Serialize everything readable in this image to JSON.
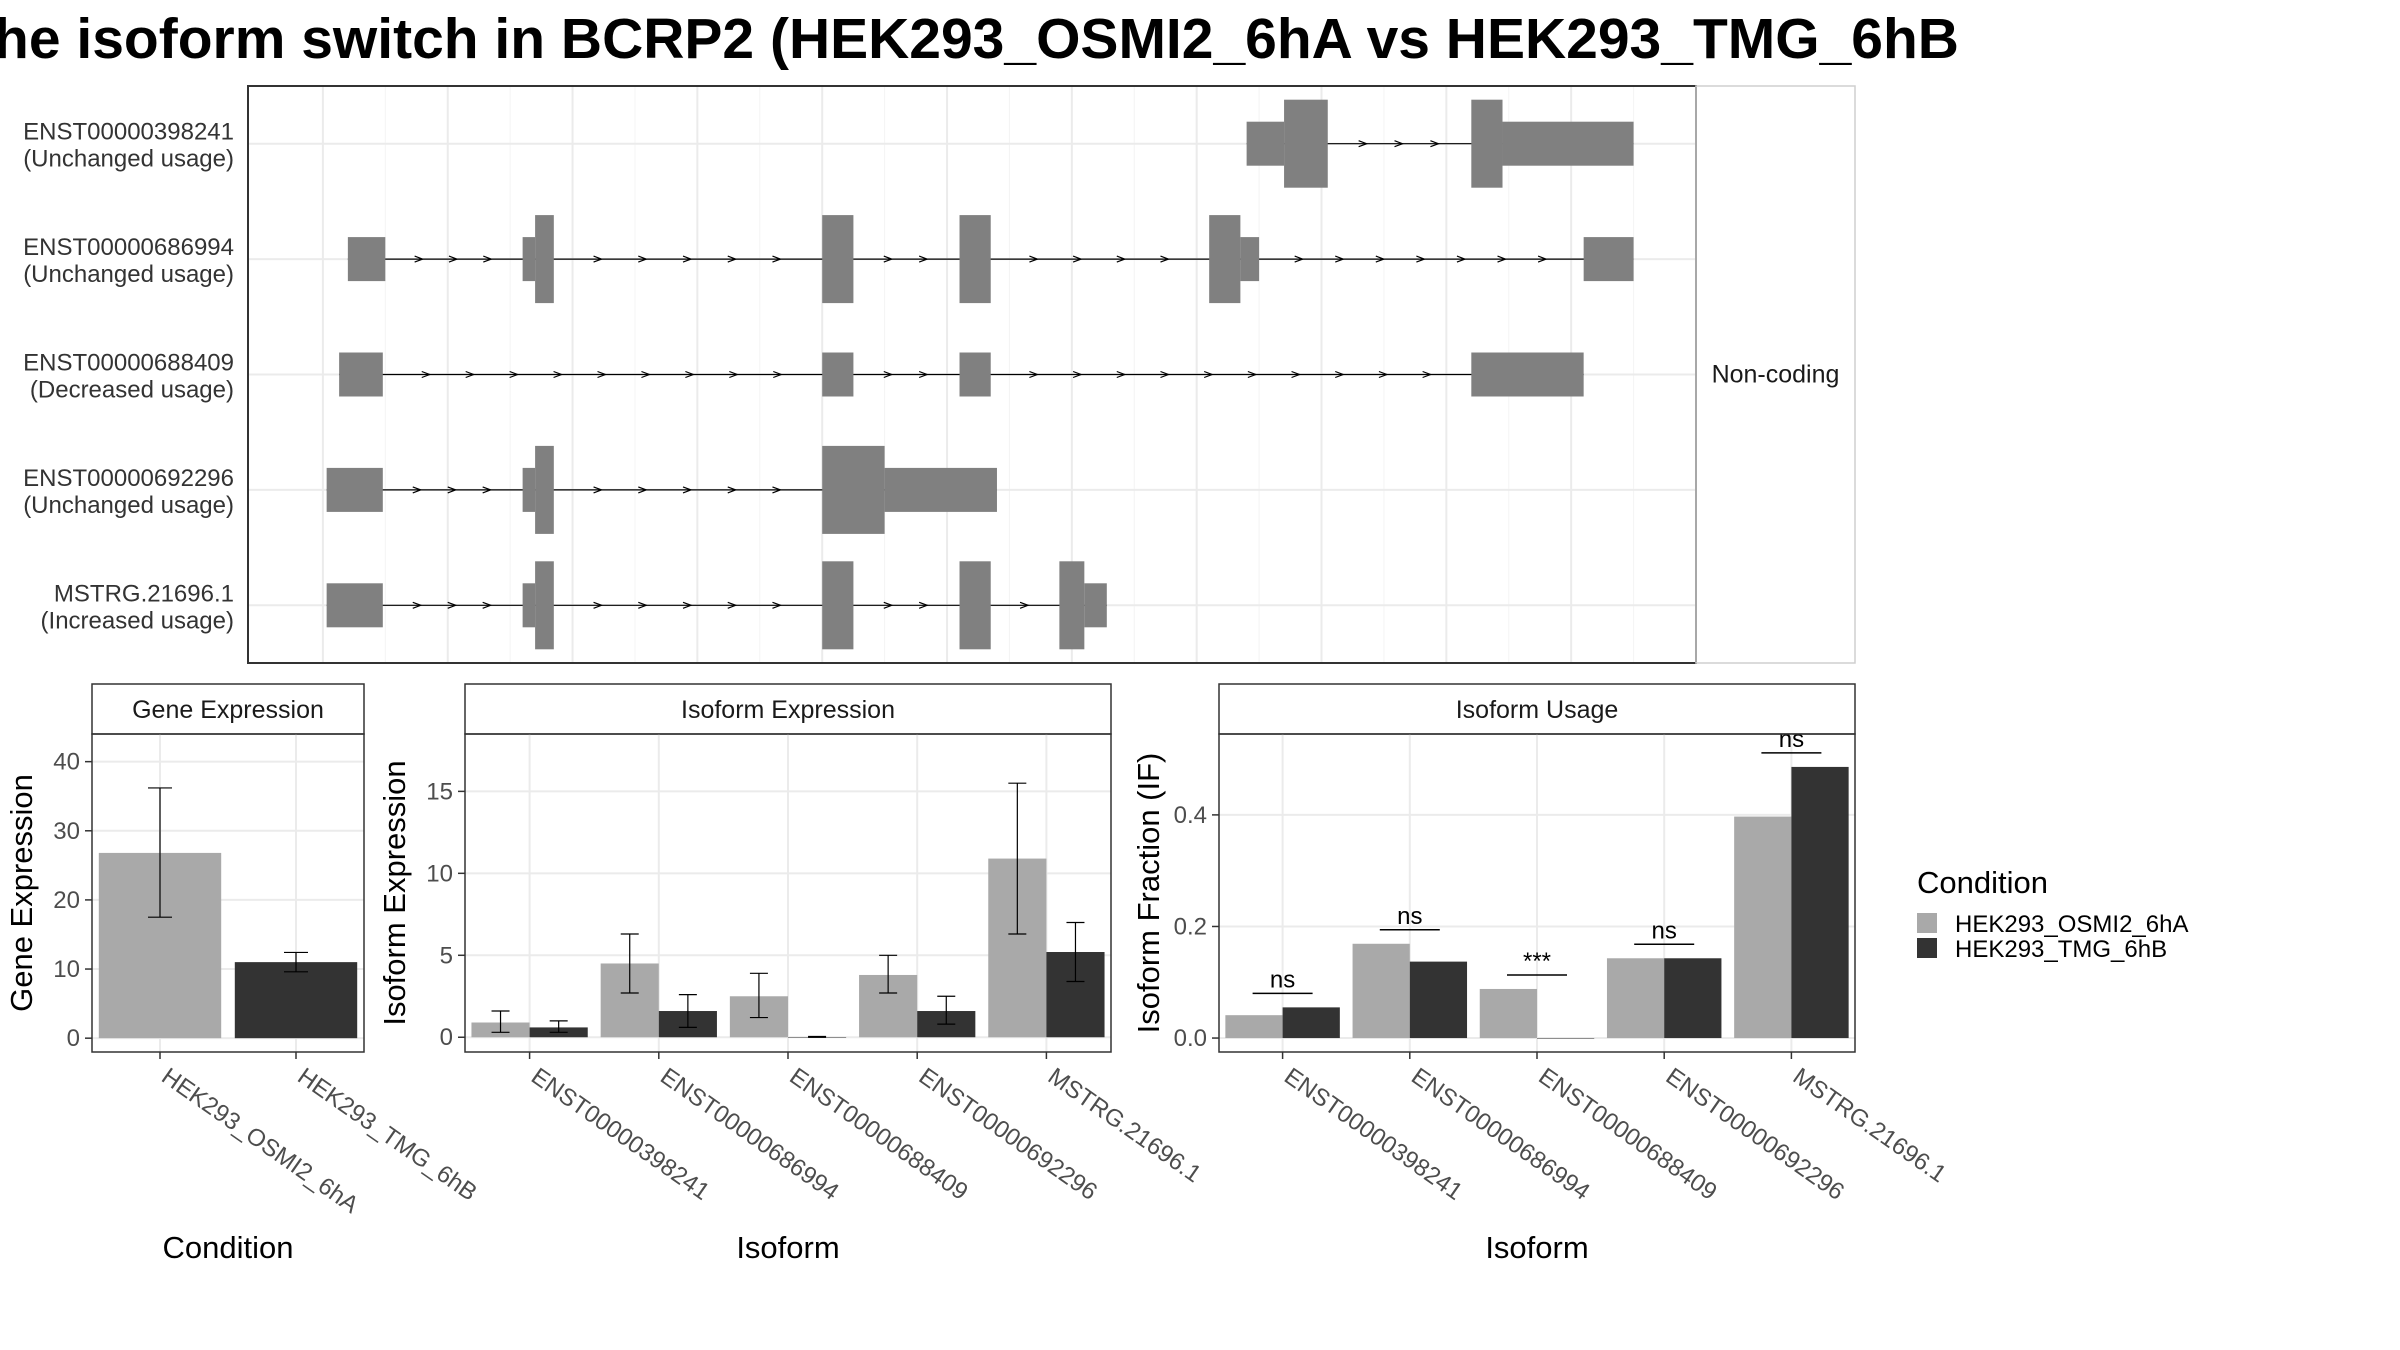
{
  "title": "he isoform switch in BCRP2 (HEK293_OSMI2_6hA vs HEK293_TMG_6hB",
  "colors": {
    "condition_a": "#a9a9a9",
    "condition_b": "#333333",
    "exon": "#808080",
    "grid": "#ebebeb"
  },
  "legend": {
    "title": "Condition",
    "items": [
      {
        "label": "HEK293_OSMI2_6hA",
        "color": "#a9a9a9"
      },
      {
        "label": "HEK293_TMG_6hB",
        "color": "#333333"
      }
    ]
  },
  "structure": {
    "facet_label": "Non-coding",
    "transcripts": [
      {
        "id": "ENST00000398241",
        "usage": "(Unchanged usage)",
        "exons": [
          [
            740,
            770,
            "thin"
          ],
          [
            770,
            805,
            "thick"
          ],
          [
            920,
            945,
            "thick"
          ],
          [
            945,
            1050,
            "thin"
          ]
        ]
      },
      {
        "id": "ENST00000686994",
        "usage": "(Unchanged usage)",
        "exons": [
          [
            20,
            50,
            "thin"
          ],
          [
            160,
            170,
            "thin"
          ],
          [
            170,
            185,
            "thick"
          ],
          [
            400,
            425,
            "thick"
          ],
          [
            510,
            535,
            "thick"
          ],
          [
            710,
            735,
            "thick"
          ],
          [
            735,
            750,
            "thin"
          ],
          [
            1010,
            1050,
            "thin"
          ]
        ]
      },
      {
        "id": "ENST00000688409",
        "usage": "(Decreased usage)",
        "exons": [
          [
            13,
            48,
            "thin"
          ],
          [
            400,
            425,
            "thin"
          ],
          [
            510,
            535,
            "thin"
          ],
          [
            920,
            1010,
            "thin"
          ]
        ]
      },
      {
        "id": "ENST00000692296",
        "usage": "(Unchanged usage)",
        "exons": [
          [
            3,
            48,
            "thin"
          ],
          [
            160,
            170,
            "thin"
          ],
          [
            170,
            185,
            "thick"
          ],
          [
            400,
            450,
            "thick"
          ],
          [
            450,
            540,
            "thin"
          ]
        ]
      },
      {
        "id": "MSTRG.21696.1",
        "usage": "(Increased usage)",
        "exons": [
          [
            3,
            48,
            "thin"
          ],
          [
            160,
            170,
            "thin"
          ],
          [
            170,
            185,
            "thick"
          ],
          [
            400,
            425,
            "thick"
          ],
          [
            510,
            535,
            "thick"
          ],
          [
            590,
            610,
            "thick"
          ],
          [
            610,
            628,
            "thin"
          ]
        ]
      }
    ]
  },
  "chart_data": [
    {
      "type": "bar",
      "strip": "Gene Expression",
      "xlabel": "Condition",
      "ylabel": "Gene Expression",
      "ylim": [
        -2,
        44
      ],
      "yticks": [
        0,
        10,
        20,
        30,
        40
      ],
      "categories": [
        "HEK293_OSMI2_6hA",
        "HEK293_TMG_6hB"
      ],
      "values": [
        26.8,
        11.0
      ],
      "error": [
        [
          17.5,
          36.2
        ],
        [
          9.6,
          12.4
        ]
      ]
    },
    {
      "type": "bar",
      "strip": "Isoform Expression",
      "xlabel": "Isoform",
      "ylabel": "Isoform Expression",
      "ylim": [
        -0.9,
        18.5
      ],
      "yticks": [
        0,
        5,
        10,
        15
      ],
      "categories": [
        "ENST00000398241",
        "ENST00000686994",
        "ENST00000688409",
        "ENST00000692296",
        "MSTRG.21696.1"
      ],
      "series": [
        {
          "name": "HEK293_OSMI2_6hA",
          "values": [
            0.9,
            4.5,
            2.5,
            3.8,
            10.9
          ],
          "error": [
            [
              0.3,
              1.6
            ],
            [
              2.7,
              6.3
            ],
            [
              1.2,
              3.9
            ],
            [
              2.7,
              5.0
            ],
            [
              6.3,
              15.5
            ]
          ]
        },
        {
          "name": "HEK293_TMG_6hB",
          "values": [
            0.6,
            1.6,
            0.0,
            1.6,
            5.2
          ],
          "error": [
            [
              0.3,
              1.0
            ],
            [
              0.6,
              2.6
            ],
            [
              0.0,
              0.05
            ],
            [
              0.8,
              2.5
            ],
            [
              3.4,
              7.0
            ]
          ]
        }
      ]
    },
    {
      "type": "bar",
      "strip": "Isoform Usage",
      "xlabel": "Isoform",
      "ylabel": "Isoform Fraction (IF)",
      "ylim": [
        -0.025,
        0.545
      ],
      "yticks": [
        "0.0",
        "0.2",
        "0.4"
      ],
      "categories": [
        "ENST00000398241",
        "ENST00000686994",
        "ENST00000688409",
        "ENST00000692296",
        "MSTRG.21696.1"
      ],
      "series": [
        {
          "name": "HEK293_OSMI2_6hA",
          "values": [
            0.041,
            0.169,
            0.088,
            0.143,
            0.397
          ]
        },
        {
          "name": "HEK293_TMG_6hB",
          "values": [
            0.055,
            0.137,
            0.0,
            0.143,
            0.486
          ]
        }
      ],
      "significance": [
        "ns",
        "ns",
        "***",
        "ns",
        "ns"
      ]
    }
  ]
}
